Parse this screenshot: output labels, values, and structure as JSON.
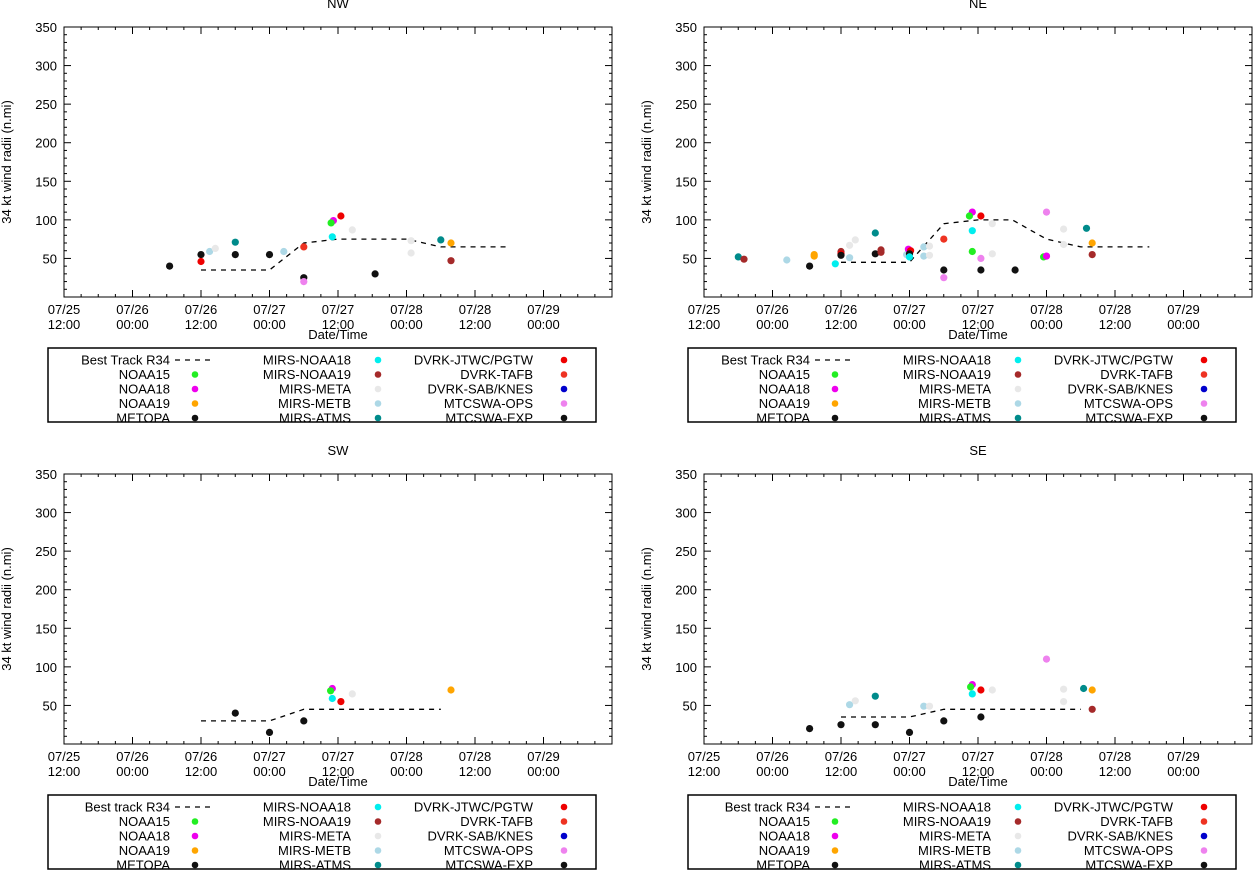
{
  "colors": {
    "NOAA15": "#22ee22",
    "NOAA18": "#ee00ee",
    "NOAA19": "#ffa500",
    "METOPA": "#111111",
    "MIRS-NOAA18": "#00eeee",
    "MIRS-NOAA19": "#a52a2a",
    "MIRS-META": "#e8e8e8",
    "MIRS-METB": "#add8e6",
    "MIRS-ATMS": "#008b8b",
    "DVRK-JTWC/PGTW": "#ee0000",
    "DVRK-TAFB": "#ee3322",
    "DVRK-SAB/KNES": "#0000cc",
    "MTCSWA-OPS": "#ee82ee",
    "MTCSWA-EXP": "#111111"
  },
  "chart_data": [
    {
      "type": "scatter",
      "title": "NW",
      "xlabel": "Date/Time",
      "ylabel": "34 kt wind radii (n.mi)",
      "ylim": [
        0,
        350
      ],
      "yticks": [
        50,
        100,
        150,
        200,
        250,
        300,
        350
      ],
      "xlim_hours": [
        0,
        96
      ],
      "xticks": [
        {
          "line1": "07/25",
          "line2": "12:00"
        },
        {
          "line1": "07/26",
          "line2": "00:00"
        },
        {
          "line1": "07/26",
          "line2": "12:00"
        },
        {
          "line1": "07/27",
          "line2": "00:00"
        },
        {
          "line1": "07/27",
          "line2": "12:00"
        },
        {
          "line1": "07/28",
          "line2": "00:00"
        },
        {
          "line1": "07/28",
          "line2": "12:00"
        },
        {
          "line1": "07/29",
          "line2": "00:00"
        }
      ],
      "best_track": {
        "x": [
          24,
          36,
          42,
          48,
          60,
          66,
          78
        ],
        "y": [
          35,
          35,
          70,
          75,
          75,
          65,
          65
        ]
      },
      "points": [
        {
          "s": "METOPA",
          "x": 18.5,
          "y": 40
        },
        {
          "s": "METOPA",
          "x": 24,
          "y": 55
        },
        {
          "s": "DVRK-JTWC/PGTW",
          "x": 24,
          "y": 46
        },
        {
          "s": "MIRS-METB",
          "x": 25.5,
          "y": 59
        },
        {
          "s": "MIRS-META",
          "x": 26.5,
          "y": 63
        },
        {
          "s": "MIRS-ATMS",
          "x": 30,
          "y": 71
        },
        {
          "s": "METOPA",
          "x": 30,
          "y": 55
        },
        {
          "s": "METOPA",
          "x": 36,
          "y": 55
        },
        {
          "s": "MIRS-METB",
          "x": 38.5,
          "y": 59
        },
        {
          "s": "DVRK-TAFB",
          "x": 42,
          "y": 65
        },
        {
          "s": "METOPA",
          "x": 42,
          "y": 25
        },
        {
          "s": "MTCSWA-OPS",
          "x": 42,
          "y": 20
        },
        {
          "s": "NOAA18",
          "x": 47.2,
          "y": 99
        },
        {
          "s": "NOAA15",
          "x": 46.8,
          "y": 96
        },
        {
          "s": "MIRS-NOAA18",
          "x": 47,
          "y": 78
        },
        {
          "s": "DVRK-JTWC/PGTW",
          "x": 48.5,
          "y": 105
        },
        {
          "s": "MIRS-META",
          "x": 50.5,
          "y": 87
        },
        {
          "s": "METOPA",
          "x": 54.5,
          "y": 30
        },
        {
          "s": "MIRS-META",
          "x": 60.8,
          "y": 73
        },
        {
          "s": "MIRS-META",
          "x": 60.8,
          "y": 57
        },
        {
          "s": "MIRS-ATMS",
          "x": 66,
          "y": 74
        },
        {
          "s": "NOAA19",
          "x": 67.8,
          "y": 70
        },
        {
          "s": "MIRS-NOAA19",
          "x": 67.8,
          "y": 47
        }
      ],
      "legend": [
        {
          "label": "Best Track R34",
          "series": "best"
        },
        {
          "label": "NOAA15",
          "series": "NOAA15"
        },
        {
          "label": "NOAA18",
          "series": "NOAA18"
        },
        {
          "label": "NOAA19",
          "series": "NOAA19"
        },
        {
          "label": "METOPA",
          "series": "METOPA"
        },
        {
          "label": "MIRS-NOAA18",
          "series": "MIRS-NOAA18"
        },
        {
          "label": "MIRS-NOAA19",
          "series": "MIRS-NOAA19"
        },
        {
          "label": "MIRS-META",
          "series": "MIRS-META"
        },
        {
          "label": "MIRS-METB",
          "series": "MIRS-METB"
        },
        {
          "label": "MIRS-ATMS",
          "series": "MIRS-ATMS"
        },
        {
          "label": "DVRK-JTWC/PGTW",
          "series": "DVRK-JTWC/PGTW"
        },
        {
          "label": "DVRK-TAFB",
          "series": "DVRK-TAFB"
        },
        {
          "label": "DVRK-SAB/KNES",
          "series": "DVRK-SAB/KNES"
        },
        {
          "label": "MTCSWA-OPS",
          "series": "MTCSWA-OPS"
        },
        {
          "label": "MTCSWA-EXP",
          "series": "MTCSWA-EXP"
        }
      ]
    },
    {
      "type": "scatter",
      "title": "NE",
      "xlabel": "Date/Time",
      "ylabel": "34 kt wind radii (n.mi)",
      "ylim": [
        0,
        350
      ],
      "yticks": [
        50,
        100,
        150,
        200,
        250,
        300,
        350
      ],
      "xlim_hours": [
        0,
        96
      ],
      "xticks": [
        {
          "line1": "07/25",
          "line2": "12:00"
        },
        {
          "line1": "07/26",
          "line2": "00:00"
        },
        {
          "line1": "07/26",
          "line2": "12:00"
        },
        {
          "line1": "07/27",
          "line2": "00:00"
        },
        {
          "line1": "07/27",
          "line2": "12:00"
        },
        {
          "line1": "07/28",
          "line2": "00:00"
        },
        {
          "line1": "07/28",
          "line2": "12:00"
        },
        {
          "line1": "07/29",
          "line2": "00:00"
        }
      ],
      "best_track": {
        "x": [
          24,
          36,
          42,
          48,
          54,
          60,
          66,
          78
        ],
        "y": [
          45,
          45,
          95,
          100,
          100,
          75,
          65,
          65
        ]
      },
      "points": [
        {
          "s": "MIRS-ATMS",
          "x": 6,
          "y": 52
        },
        {
          "s": "MIRS-NOAA19",
          "x": 7,
          "y": 49
        },
        {
          "s": "MIRS-METB",
          "x": 14.5,
          "y": 48
        },
        {
          "s": "METOPA",
          "x": 18.5,
          "y": 40
        },
        {
          "s": "NOAA19",
          "x": 19.3,
          "y": 55
        },
        {
          "s": "NOAA19",
          "x": 19.3,
          "y": 53
        },
        {
          "s": "MIRS-NOAA18",
          "x": 23,
          "y": 43
        },
        {
          "s": "MIRS-NOAA19",
          "x": 24,
          "y": 59
        },
        {
          "s": "DVRK-JTWC/PGTW",
          "x": 24,
          "y": 56
        },
        {
          "s": "METOPA",
          "x": 24,
          "y": 54
        },
        {
          "s": "MIRS-META",
          "x": 25.5,
          "y": 67
        },
        {
          "s": "MIRS-META",
          "x": 26.5,
          "y": 74
        },
        {
          "s": "MIRS-METB",
          "x": 25.5,
          "y": 51
        },
        {
          "s": "MIRS-ATMS",
          "x": 30,
          "y": 83
        },
        {
          "s": "METOPA",
          "x": 30,
          "y": 56
        },
        {
          "s": "MIRS-NOAA19",
          "x": 31,
          "y": 61
        },
        {
          "s": "MIRS-NOAA19",
          "x": 31,
          "y": 58
        },
        {
          "s": "MIRS-METB",
          "x": 35.5,
          "y": 55
        },
        {
          "s": "NOAA18",
          "x": 35.8,
          "y": 62
        },
        {
          "s": "DVRK-JTWC/PGTW",
          "x": 36.2,
          "y": 60
        },
        {
          "s": "METOPA",
          "x": 36,
          "y": 56
        },
        {
          "s": "MIRS-NOAA18",
          "x": 36,
          "y": 52
        },
        {
          "s": "MIRS-METB",
          "x": 38.5,
          "y": 65
        },
        {
          "s": "MIRS-META",
          "x": 39.5,
          "y": 66
        },
        {
          "s": "MIRS-METB",
          "x": 38.5,
          "y": 53
        },
        {
          "s": "MIRS-META",
          "x": 39.5,
          "y": 54
        },
        {
          "s": "DVRK-TAFB",
          "x": 42,
          "y": 75
        },
        {
          "s": "METOPA",
          "x": 42,
          "y": 35
        },
        {
          "s": "MTCSWA-OPS",
          "x": 42,
          "y": 25
        },
        {
          "s": "NOAA18",
          "x": 47,
          "y": 110
        },
        {
          "s": "NOAA15",
          "x": 46.5,
          "y": 105
        },
        {
          "s": "MIRS-NOAA18",
          "x": 47,
          "y": 86
        },
        {
          "s": "NOAA15",
          "x": 47,
          "y": 59
        },
        {
          "s": "DVRK-JTWC/PGTW",
          "x": 48.5,
          "y": 105
        },
        {
          "s": "MTCSWA-OPS",
          "x": 48.5,
          "y": 50
        },
        {
          "s": "METOPA",
          "x": 48.5,
          "y": 35
        },
        {
          "s": "MIRS-META",
          "x": 50.5,
          "y": 95
        },
        {
          "s": "MIRS-META",
          "x": 50.5,
          "y": 56
        },
        {
          "s": "METOPA",
          "x": 54.5,
          "y": 35
        },
        {
          "s": "MTCSWA-OPS",
          "x": 60,
          "y": 110
        },
        {
          "s": "NOAA15",
          "x": 59.5,
          "y": 52
        },
        {
          "s": "NOAA18",
          "x": 60,
          "y": 53
        },
        {
          "s": "MIRS-META",
          "x": 63,
          "y": 88
        },
        {
          "s": "MIRS-META",
          "x": 63,
          "y": 68
        },
        {
          "s": "MIRS-ATMS",
          "x": 67,
          "y": 89
        },
        {
          "s": "NOAA19",
          "x": 68,
          "y": 70
        },
        {
          "s": "MIRS-NOAA19",
          "x": 68,
          "y": 55
        }
      ],
      "legend": [
        {
          "label": "Best Track R34",
          "series": "best"
        },
        {
          "label": "NOAA15",
          "series": "NOAA15"
        },
        {
          "label": "NOAA18",
          "series": "NOAA18"
        },
        {
          "label": "NOAA19",
          "series": "NOAA19"
        },
        {
          "label": "METOPA",
          "series": "METOPA"
        },
        {
          "label": "MIRS-NOAA18",
          "series": "MIRS-NOAA18"
        },
        {
          "label": "MIRS-NOAA19",
          "series": "MIRS-NOAA19"
        },
        {
          "label": "MIRS-META",
          "series": "MIRS-META"
        },
        {
          "label": "MIRS-METB",
          "series": "MIRS-METB"
        },
        {
          "label": "MIRS-ATMS",
          "series": "MIRS-ATMS"
        },
        {
          "label": "DVRK-JTWC/PGTW",
          "series": "DVRK-JTWC/PGTW"
        },
        {
          "label": "DVRK-TAFB",
          "series": "DVRK-TAFB"
        },
        {
          "label": "DVRK-SAB/KNES",
          "series": "DVRK-SAB/KNES"
        },
        {
          "label": "MTCSWA-OPS",
          "series": "MTCSWA-OPS"
        },
        {
          "label": "MTCSWA-EXP",
          "series": "MTCSWA-EXP"
        }
      ]
    },
    {
      "type": "scatter",
      "title": "SW",
      "xlabel": "Date/Time",
      "ylabel": "34 kt wind radii (n.mi)",
      "ylim": [
        0,
        350
      ],
      "yticks": [
        50,
        100,
        150,
        200,
        250,
        300,
        350
      ],
      "xlim_hours": [
        0,
        96
      ],
      "xticks": [
        {
          "line1": "07/25",
          "line2": "12:00"
        },
        {
          "line1": "07/26",
          "line2": "00:00"
        },
        {
          "line1": "07/26",
          "line2": "12:00"
        },
        {
          "line1": "07/27",
          "line2": "00:00"
        },
        {
          "line1": "07/27",
          "line2": "12:00"
        },
        {
          "line1": "07/28",
          "line2": "00:00"
        },
        {
          "line1": "07/28",
          "line2": "12:00"
        },
        {
          "line1": "07/29",
          "line2": "00:00"
        }
      ],
      "best_track": {
        "x": [
          24,
          36,
          42,
          66
        ],
        "y": [
          30,
          30,
          45,
          45
        ]
      },
      "points": [
        {
          "s": "METOPA",
          "x": 30,
          "y": 40
        },
        {
          "s": "METOPA",
          "x": 36,
          "y": 15
        },
        {
          "s": "METOPA",
          "x": 42,
          "y": 30
        },
        {
          "s": "NOAA18",
          "x": 47,
          "y": 72
        },
        {
          "s": "NOAA15",
          "x": 46.7,
          "y": 69
        },
        {
          "s": "MIRS-NOAA18",
          "x": 47,
          "y": 59
        },
        {
          "s": "DVRK-JTWC/PGTW",
          "x": 48.5,
          "y": 55
        },
        {
          "s": "MIRS-META",
          "x": 50.5,
          "y": 65
        },
        {
          "s": "NOAA19",
          "x": 67.8,
          "y": 70
        }
      ],
      "legend": [
        {
          "label": "Best track R34",
          "series": "best"
        },
        {
          "label": "NOAA15",
          "series": "NOAA15"
        },
        {
          "label": "NOAA18",
          "series": "NOAA18"
        },
        {
          "label": "NOAA19",
          "series": "NOAA19"
        },
        {
          "label": "METOPA",
          "series": "METOPA"
        },
        {
          "label": "MIRS-NOAA18",
          "series": "MIRS-NOAA18"
        },
        {
          "label": "MIRS-NOAA19",
          "series": "MIRS-NOAA19"
        },
        {
          "label": "MIRS-META",
          "series": "MIRS-META"
        },
        {
          "label": "MIRS-METB",
          "series": "MIRS-METB"
        },
        {
          "label": "MIRS-ATMS",
          "series": "MIRS-ATMS"
        },
        {
          "label": "DVRK-JTWC/PGTW",
          "series": "DVRK-JTWC/PGTW"
        },
        {
          "label": "DVRK-TAFB",
          "series": "DVRK-TAFB"
        },
        {
          "label": "DVRK-SAB/KNES",
          "series": "DVRK-SAB/KNES"
        },
        {
          "label": "MTCSWA-OPS",
          "series": "MTCSWA-OPS"
        },
        {
          "label": "MTCSWA-EXP",
          "series": "MTCSWA-EXP"
        }
      ]
    },
    {
      "type": "scatter",
      "title": "SE",
      "xlabel": "Date/Time",
      "ylabel": "34 kt wind radii (n.mi)",
      "ylim": [
        0,
        350
      ],
      "yticks": [
        50,
        100,
        150,
        200,
        250,
        300,
        350
      ],
      "xlim_hours": [
        0,
        96
      ],
      "xticks": [
        {
          "line1": "07/25",
          "line2": "12:00"
        },
        {
          "line1": "07/26",
          "line2": "00:00"
        },
        {
          "line1": "07/26",
          "line2": "12:00"
        },
        {
          "line1": "07/27",
          "line2": "00:00"
        },
        {
          "line1": "07/27",
          "line2": "12:00"
        },
        {
          "line1": "07/28",
          "line2": "00:00"
        },
        {
          "line1": "07/28",
          "line2": "12:00"
        },
        {
          "line1": "07/29",
          "line2": "00:00"
        }
      ],
      "best_track": {
        "x": [
          24,
          36,
          42,
          66
        ],
        "y": [
          35,
          35,
          45,
          45
        ]
      },
      "points": [
        {
          "s": "METOPA",
          "x": 18.5,
          "y": 20
        },
        {
          "s": "METOPA",
          "x": 24,
          "y": 25
        },
        {
          "s": "MIRS-METB",
          "x": 25.5,
          "y": 51
        },
        {
          "s": "MIRS-META",
          "x": 26.5,
          "y": 56
        },
        {
          "s": "MIRS-ATMS",
          "x": 30,
          "y": 62
        },
        {
          "s": "METOPA",
          "x": 30,
          "y": 25
        },
        {
          "s": "METOPA",
          "x": 36,
          "y": 15
        },
        {
          "s": "MIRS-METB",
          "x": 38.5,
          "y": 49
        },
        {
          "s": "MIRS-META",
          "x": 39.5,
          "y": 49
        },
        {
          "s": "METOPA",
          "x": 42,
          "y": 30
        },
        {
          "s": "NOAA18",
          "x": 47,
          "y": 77
        },
        {
          "s": "NOAA15",
          "x": 46.7,
          "y": 74
        },
        {
          "s": "MIRS-NOAA18",
          "x": 47,
          "y": 65
        },
        {
          "s": "DVRK-JTWC/PGTW",
          "x": 48.5,
          "y": 70
        },
        {
          "s": "METOPA",
          "x": 48.5,
          "y": 35
        },
        {
          "s": "MIRS-META",
          "x": 50.5,
          "y": 70
        },
        {
          "s": "MTCSWA-OPS",
          "x": 60,
          "y": 110
        },
        {
          "s": "MIRS-META",
          "x": 63,
          "y": 71
        },
        {
          "s": "MIRS-META",
          "x": 63,
          "y": 55
        },
        {
          "s": "MIRS-ATMS",
          "x": 66.5,
          "y": 72
        },
        {
          "s": "NOAA19",
          "x": 68,
          "y": 70
        },
        {
          "s": "MIRS-NOAA19",
          "x": 68,
          "y": 45
        }
      ],
      "legend": [
        {
          "label": "Best track R34",
          "series": "best"
        },
        {
          "label": "NOAA15",
          "series": "NOAA15"
        },
        {
          "label": "NOAA18",
          "series": "NOAA18"
        },
        {
          "label": "NOAA19",
          "series": "NOAA19"
        },
        {
          "label": "METOPA",
          "series": "METOPA"
        },
        {
          "label": "MIRS-NOAA18",
          "series": "MIRS-NOAA18"
        },
        {
          "label": "MIRS-NOAA19",
          "series": "MIRS-NOAA19"
        },
        {
          "label": "MIRS-META",
          "series": "MIRS-META"
        },
        {
          "label": "MIRS-METB",
          "series": "MIRS-METB"
        },
        {
          "label": "MIRS-ATMS",
          "series": "MIRS-ATMS"
        },
        {
          "label": "DVRK-JTWC/PGTW",
          "series": "DVRK-JTWC/PGTW"
        },
        {
          "label": "DVRK-TAFB",
          "series": "DVRK-TAFB"
        },
        {
          "label": "DVRK-SAB/KNES",
          "series": "DVRK-SAB/KNES"
        },
        {
          "label": "MTCSWA-OPS",
          "series": "MTCSWA-OPS"
        },
        {
          "label": "MTCSWA-EXP",
          "series": "MTCSWA-EXP"
        }
      ]
    }
  ]
}
